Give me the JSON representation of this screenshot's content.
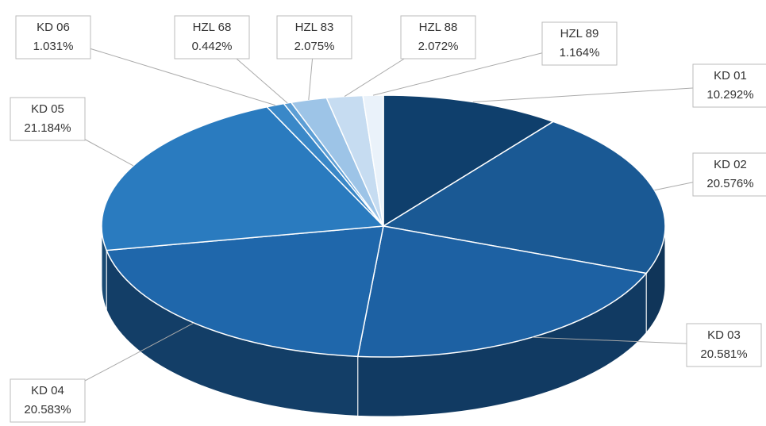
{
  "chart_data": {
    "type": "pie3d",
    "categories": [
      "KD 01",
      "KD 02",
      "KD 03",
      "KD 04",
      "KD 05",
      "KD 06",
      "HZL 68",
      "HZL 83",
      "HZL 88",
      "HZL 89"
    ],
    "values": [
      10.292,
      20.576,
      20.581,
      20.583,
      21.184,
      1.031,
      0.442,
      2.075,
      2.072,
      1.164
    ],
    "value_labels": [
      "10.292%",
      "20.576%",
      "20.581%",
      "20.583%",
      "21.184%",
      "1.031%",
      "0.442%",
      "2.075%",
      "2.072%",
      "1.164%"
    ],
    "colors": [
      "#0f3f6c",
      "#1a5994",
      "#1d61a3",
      "#1f67ab",
      "#2a7bbf",
      "#3a88c8",
      "#5c9ed5",
      "#9dc4e7",
      "#c6dcf1",
      "#eaf2fa"
    ]
  }
}
